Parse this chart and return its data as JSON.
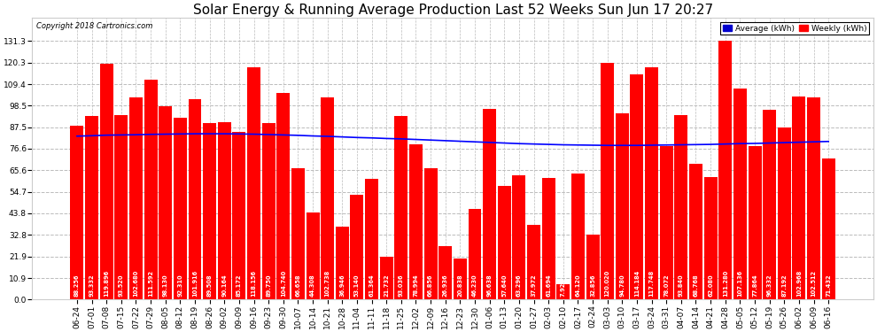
{
  "title": "Solar Energy & Running Average Production Last 52 Weeks Sun Jun 17 20:27",
  "copyright": "Copyright 2018 Cartronics.com",
  "bar_color": "#ff0000",
  "avg_line_color": "#0000ff",
  "background_color": "#ffffff",
  "legend_avg_color": "#0000cd",
  "legend_weekly_color": "#ff0000",
  "yticks": [
    0.0,
    10.9,
    21.9,
    32.8,
    43.8,
    54.7,
    65.6,
    76.6,
    87.5,
    98.5,
    109.4,
    120.3,
    131.3
  ],
  "categories": [
    "06-24",
    "07-01",
    "07-08",
    "07-15",
    "07-22",
    "07-29",
    "08-05",
    "08-12",
    "08-19",
    "08-26",
    "09-02",
    "09-09",
    "09-16",
    "09-23",
    "09-30",
    "10-07",
    "10-14",
    "10-21",
    "10-28",
    "11-04",
    "11-11",
    "11-18",
    "11-25",
    "12-02",
    "12-09",
    "12-16",
    "12-23",
    "12-30",
    "01-06",
    "01-13",
    "01-20",
    "01-27",
    "02-03",
    "02-10",
    "02-17",
    "02-24",
    "03-03",
    "03-10",
    "03-17",
    "03-24",
    "03-31",
    "04-07",
    "04-14",
    "04-21",
    "04-28",
    "05-05",
    "05-12",
    "05-19",
    "05-26",
    "06-02",
    "06-09",
    "06-16"
  ],
  "weekly_values": [
    88.256,
    93.332,
    119.896,
    93.52,
    102.68,
    111.592,
    98.13,
    92.31,
    101.916,
    89.508,
    90.164,
    85.172,
    118.156,
    89.75,
    104.74,
    66.658,
    44.308,
    102.738,
    36.946,
    53.14,
    61.364,
    21.732,
    93.036,
    78.994,
    66.856,
    26.936,
    20.838,
    46.23,
    96.638,
    57.64,
    63.296,
    37.972,
    61.694,
    7.926,
    64.12,
    32.856,
    120.02,
    94.78,
    114.184,
    117.748,
    78.072,
    93.84,
    68.768,
    62.08,
    131.28,
    107.136,
    77.864,
    96.332,
    87.192,
    102.968,
    102.512,
    71.432
  ],
  "avg_values": [
    83.0,
    83.2,
    83.5,
    83.6,
    83.7,
    83.9,
    84.0,
    84.1,
    84.2,
    84.2,
    84.2,
    84.1,
    84.0,
    83.8,
    83.6,
    83.4,
    83.1,
    82.9,
    82.6,
    82.3,
    82.1,
    81.8,
    81.6,
    81.3,
    81.0,
    80.7,
    80.4,
    80.1,
    79.8,
    79.5,
    79.2,
    79.0,
    78.8,
    78.6,
    78.5,
    78.4,
    78.3,
    78.3,
    78.3,
    78.4,
    78.5,
    78.6,
    78.7,
    78.8,
    79.0,
    79.2,
    79.3,
    79.5,
    79.7,
    79.9,
    80.1,
    80.3
  ],
  "ylim": [
    0,
    143
  ],
  "grid_color": "#bbbbbb",
  "title_fontsize": 11,
  "tick_fontsize": 6.5,
  "bar_label_fontsize": 4.8
}
